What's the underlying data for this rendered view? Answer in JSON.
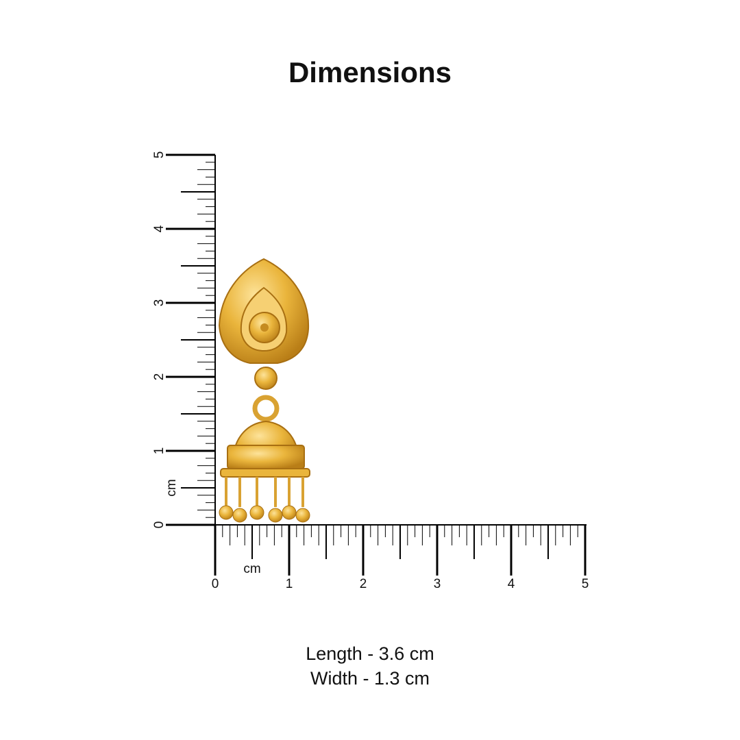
{
  "title": "Dimensions",
  "product": "gold jhumka earring",
  "ruler": {
    "unit": "cm",
    "horizontal_labels": [
      "0",
      "1",
      "2",
      "3",
      "4",
      "5"
    ],
    "vertical_labels": [
      "0",
      "1",
      "2",
      "3",
      "4",
      "5"
    ],
    "max_cm": 5,
    "color": "#000000"
  },
  "measurements": {
    "length": "Length - 3.6 cm",
    "width": "Width - 1.3 cm"
  },
  "colors": {
    "gold": "#e8b43a",
    "gold_dark": "#b9801a"
  }
}
